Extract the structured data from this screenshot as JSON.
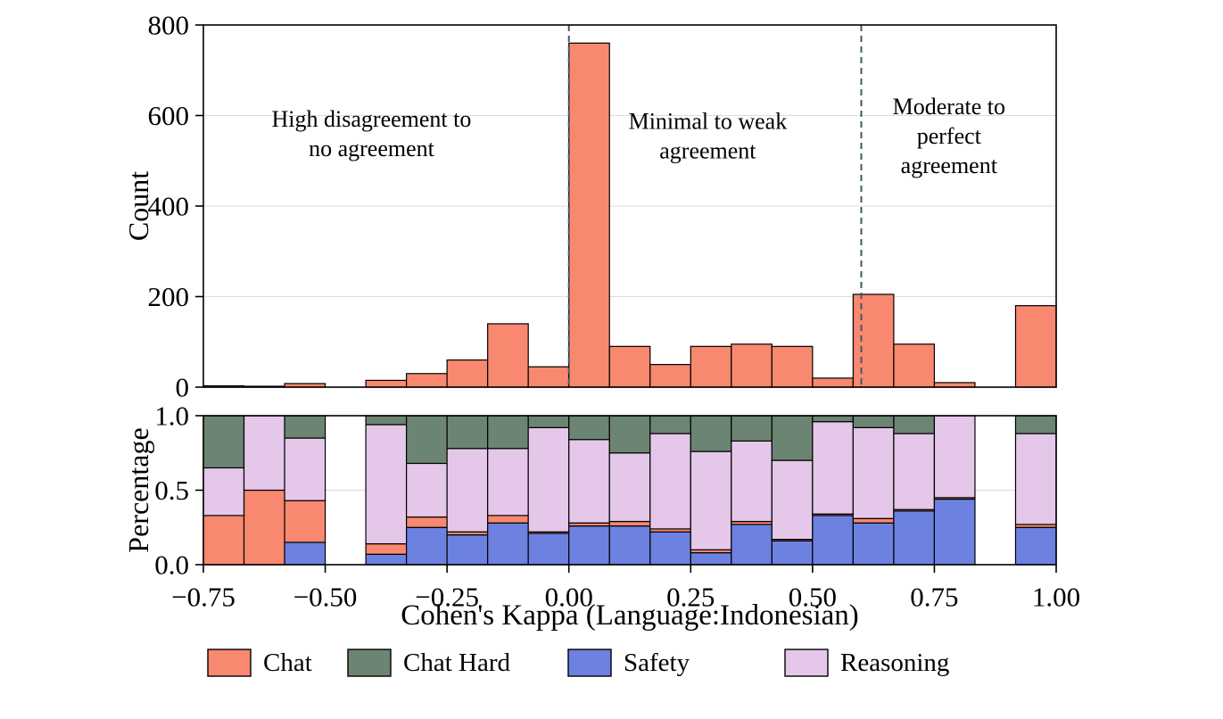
{
  "figure": {
    "description": "Two-panel histogram of Cohen's Kappa agreement for Indonesian language subsets"
  },
  "xaxis": {
    "label": "Cohen's Kappa (Language:Indonesian)",
    "ticks": [
      -0.75,
      -0.5,
      -0.25,
      0.0,
      0.25,
      0.5,
      0.75,
      1.0
    ],
    "xlim": [
      -0.75,
      1.0
    ]
  },
  "colors": {
    "chat": "#F8886F",
    "chat_hard": "#6C8572",
    "safety": "#6C81E0",
    "reasoning": "#E4C7E9",
    "vline": "#3D5A66",
    "grid": "#DCDCDC",
    "edge": "#000000"
  },
  "legend": {
    "items": [
      {
        "label": "Chat",
        "color_key": "chat"
      },
      {
        "label": "Chat Hard",
        "color_key": "chat_hard"
      },
      {
        "label": "Safety",
        "color_key": "safety"
      },
      {
        "label": "Reasoning",
        "color_key": "reasoning"
      }
    ]
  },
  "chart_data": [
    {
      "type": "bar",
      "name": "count-histogram",
      "ylabel": "Count",
      "ylim": [
        0,
        800
      ],
      "yticks": [
        0,
        200,
        400,
        600,
        800
      ],
      "bin_start": -0.75,
      "bin_width": 0.0833333,
      "n_bins": 21,
      "counts": [
        3,
        2,
        8,
        0,
        15,
        30,
        60,
        140,
        45,
        760,
        90,
        50,
        90,
        95,
        90,
        20,
        205,
        95,
        10,
        0,
        180
      ],
      "vlines": [
        0.0,
        0.6
      ],
      "annotations": [
        {
          "x": -0.405,
          "y": 560,
          "lines": [
            "High disagreement to",
            "no agreement"
          ]
        },
        {
          "x": 0.285,
          "y": 555,
          "lines": [
            "Minimal to weak",
            "agreement"
          ]
        },
        {
          "x": 0.78,
          "y": 555,
          "lines": [
            "Moderate to",
            "perfect",
            "agreement"
          ]
        }
      ]
    },
    {
      "type": "stacked-bar",
      "name": "percentage-stack",
      "ylabel": "Percentage",
      "ylim": [
        0,
        1.0
      ],
      "yticks": [
        0.0,
        0.5,
        1.0
      ],
      "series": [
        {
          "name": "Safety",
          "color_key": "safety",
          "values": [
            0,
            0,
            0.15,
            0,
            0.07,
            0.25,
            0.2,
            0.28,
            0.21,
            0.26,
            0.26,
            0.22,
            0.08,
            0.27,
            0.16,
            0.33,
            0.28,
            0.36,
            0.44,
            0,
            0.25
          ]
        },
        {
          "name": "Chat",
          "color_key": "chat",
          "values": [
            0.33,
            0.5,
            0.28,
            0,
            0.07,
            0.07,
            0.02,
            0.05,
            0.01,
            0.02,
            0.03,
            0.02,
            0.02,
            0.02,
            0.01,
            0.01,
            0.03,
            0.01,
            0.01,
            0,
            0.02
          ]
        },
        {
          "name": "Reasoning",
          "color_key": "reasoning",
          "values": [
            0.32,
            0.5,
            0.42,
            0,
            0.8,
            0.36,
            0.56,
            0.45,
            0.7,
            0.56,
            0.46,
            0.64,
            0.66,
            0.54,
            0.53,
            0.62,
            0.61,
            0.51,
            0.55,
            0,
            0.61
          ]
        },
        {
          "name": "Chat Hard",
          "color_key": "chat_hard",
          "values": [
            0.35,
            0,
            0.15,
            0,
            0.06,
            0.32,
            0.22,
            0.22,
            0.08,
            0.16,
            0.25,
            0.12,
            0.24,
            0.17,
            0.3,
            0.04,
            0.08,
            0.12,
            0,
            0,
            0.12
          ]
        }
      ]
    }
  ]
}
